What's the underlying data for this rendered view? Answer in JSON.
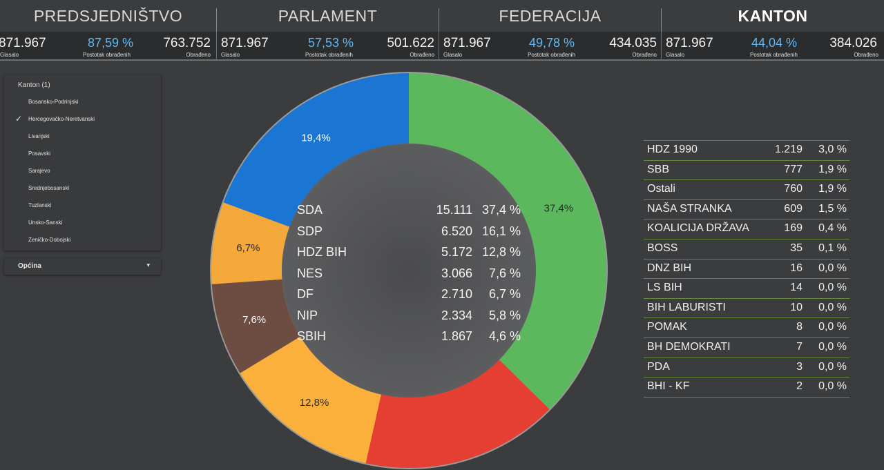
{
  "tabs": [
    {
      "label": "PREDSJEDNIŠTVO",
      "active": false
    },
    {
      "label": "PARLAMENT",
      "active": false
    },
    {
      "label": "FEDERACIJA",
      "active": false
    },
    {
      "label": "KANTON",
      "active": true
    }
  ],
  "stats": [
    {
      "voted": "871.967",
      "voted_label": "Glasalo",
      "percent": "87,59 %",
      "percent_label": "Postotak obrađenih",
      "processed": "763.752",
      "processed_label": "Obrađeno"
    },
    {
      "voted": "871.967",
      "voted_label": "Glasalo",
      "percent": "57,53 %",
      "percent_label": "Postotak obrađenih",
      "processed": "501.622",
      "processed_label": "Obrađeno"
    },
    {
      "voted": "871.967",
      "voted_label": "Glasalo",
      "percent": "49,78 %",
      "percent_label": "Postotak obrađenih",
      "processed": "434.035",
      "processed_label": "Obrađeno"
    },
    {
      "voted": "871.967",
      "voted_label": "Glasalo",
      "percent": "44,04 %",
      "percent_label": "Postotak obrađenih",
      "processed": "384.026",
      "processed_label": "Obrađeno"
    }
  ],
  "filter": {
    "title": "Kanton (1)",
    "options": [
      {
        "label": "Bosansko-Podrinjski",
        "checked": false
      },
      {
        "label": "Hercegovačko-Neretvanski",
        "checked": true
      },
      {
        "label": "Livanjski",
        "checked": false
      },
      {
        "label": "Posavski",
        "checked": false
      },
      {
        "label": "Sarajevo",
        "checked": false
      },
      {
        "label": "Srednjebosanski",
        "checked": false
      },
      {
        "label": "Tuzlanski",
        "checked": false
      },
      {
        "label": "Unsko-Sanski",
        "checked": false
      },
      {
        "label": "Zeničko-Dobojski",
        "checked": false
      }
    ],
    "checkmark": "✓"
  },
  "municipality_dropdown": {
    "label": "Općina",
    "caret_icon": "caret-down-icon"
  },
  "chart_data": {
    "type": "pie",
    "donut": true,
    "slices": [
      {
        "label": "37,4%",
        "value": 37.4,
        "color": "#5cb85c"
      },
      {
        "label": "",
        "value": 16.1,
        "color": "#e53e33"
      },
      {
        "label": "12,8%",
        "value": 12.8,
        "color": "#fbb03b"
      },
      {
        "label": "7,6%",
        "value": 7.6,
        "color": "#6d4c41"
      },
      {
        "label": "6,7%",
        "value": 6.7,
        "color": "#f5a83a"
      },
      {
        "label": "19,4%",
        "value": 19.4,
        "color": "#1a76d2"
      }
    ],
    "center_rows": [
      {
        "name": "SDA",
        "votes": "15.111",
        "percent": "37,4 %"
      },
      {
        "name": "SDP",
        "votes": "6.520",
        "percent": "16,1 %"
      },
      {
        "name": "HDZ BIH",
        "votes": "5.172",
        "percent": "12,8 %"
      },
      {
        "name": "NES",
        "votes": "3.066",
        "percent": "7,6 %"
      },
      {
        "name": "DF",
        "votes": "2.710",
        "percent": "6,7 %"
      },
      {
        "name": "NIP",
        "votes": "2.334",
        "percent": "5,8 %"
      },
      {
        "name": "SBIH",
        "votes": "1.867",
        "percent": "4,6 %"
      }
    ]
  },
  "results_table": [
    {
      "name": "HDZ 1990",
      "votes": "1.219",
      "percent": "3,0 %"
    },
    {
      "name": "SBB",
      "votes": "777",
      "percent": "1,9 %"
    },
    {
      "name": "Ostali",
      "votes": "760",
      "percent": "1,9 %"
    },
    {
      "name": "NAŠA STRANKA",
      "votes": "609",
      "percent": "1,5 %"
    },
    {
      "name": "KOALICIJA DRŽAVA",
      "votes": "169",
      "percent": "0,4 %"
    },
    {
      "name": "BOSS",
      "votes": "35",
      "percent": "0,1 %"
    },
    {
      "name": "DNZ BIH",
      "votes": "16",
      "percent": "0,0 %"
    },
    {
      "name": "LS BIH",
      "votes": "14",
      "percent": "0,0 %"
    },
    {
      "name": "BIH LABURISTI",
      "votes": "10",
      "percent": "0,0 %"
    },
    {
      "name": "POMAK",
      "votes": "8",
      "percent": "0,0 %"
    },
    {
      "name": "BH DEMOKRATI",
      "votes": "7",
      "percent": "0,0 %"
    },
    {
      "name": "PDA",
      "votes": "3",
      "percent": "0,0 %"
    },
    {
      "name": "BHI - KF",
      "votes": "2",
      "percent": "0,0 %"
    }
  ],
  "colors": {
    "background": "#3b3c3e",
    "stats_bar": "#2b2c2d",
    "accent_blue": "#63b7f2",
    "table_rule": "#5f8a3a",
    "donut_center": "#505153"
  }
}
